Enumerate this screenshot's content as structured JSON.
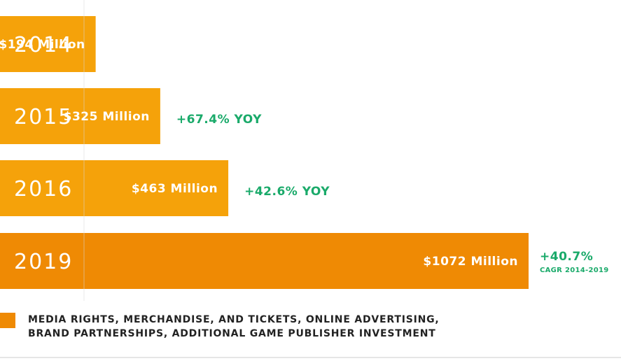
{
  "colors": {
    "bar": "#f5a20a",
    "bar_highlight": "#ef8a04",
    "growth": "#1aaa6a",
    "divider": "#d8d8d8",
    "legend_swatch": "#ef8a04"
  },
  "chart_data": {
    "type": "bar",
    "orientation": "horizontal",
    "categories": [
      "2014",
      "2015",
      "2016",
      "2019"
    ],
    "values": [
      194,
      325,
      463,
      1072
    ],
    "value_labels": [
      "$194 Million",
      "$325 Million",
      "$463 Million",
      "$1072 Million"
    ],
    "growth_labels": [
      "",
      "+67.4% YOY",
      "+42.6% YOY",
      "+40.7%"
    ],
    "growth_sublabels": [
      "",
      "",
      "",
      "CAGR 2014-2019"
    ],
    "highlight_index": 3,
    "title": "",
    "xlabel": "",
    "ylabel": "",
    "xlim": [
      0,
      1072
    ],
    "grid": false
  },
  "legend": {
    "line1": "MEDIA RIGHTS, MERCHANDISE, AND TICKETS, ONLINE ADVERTISING,",
    "line2": "BRAND PARTNERSHIPS, ADDITIONAL GAME PUBLISHER INVESTMENT"
  }
}
